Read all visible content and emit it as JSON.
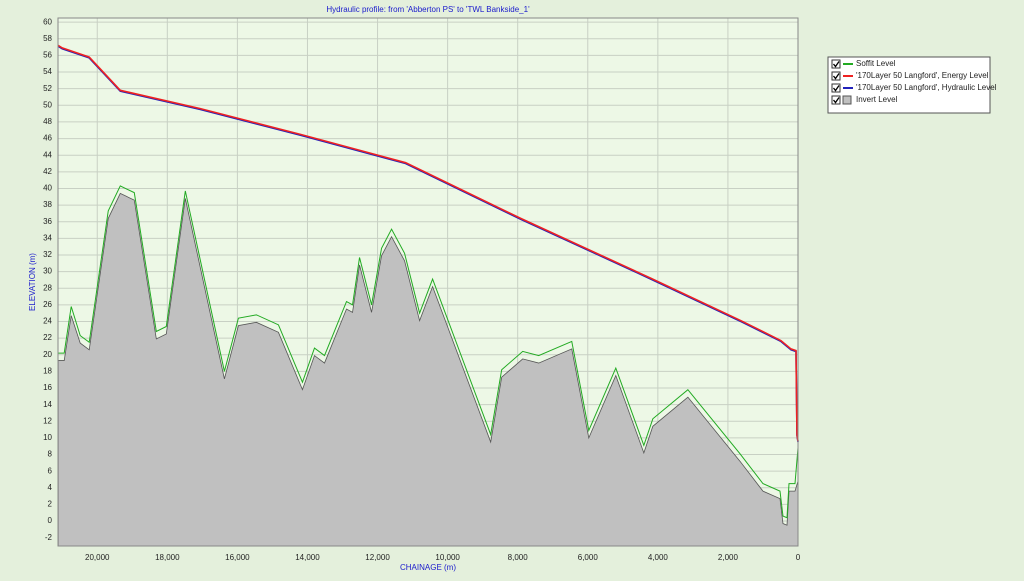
{
  "chart_data": {
    "type": "profile",
    "title": "Hydraulic profile: from 'Abberton PS' to 'TWL Bankside_1'",
    "x_label": "CHAINAGE (m)",
    "y_label": "ELEVATION (m)",
    "xlim": [
      21120,
      0
    ],
    "ylim": [
      -3,
      60.5
    ],
    "xticks": [
      {
        "value": 20000,
        "label": "20,000"
      },
      {
        "value": 18000,
        "label": "18,000"
      },
      {
        "value": 16000,
        "label": "16,000"
      },
      {
        "value": 14000,
        "label": "14,000"
      },
      {
        "value": 12000,
        "label": "12,000"
      },
      {
        "value": 10000,
        "label": "10,000"
      },
      {
        "value": 8000,
        "label": "8,000"
      },
      {
        "value": 6000,
        "label": "6,000"
      },
      {
        "value": 4000,
        "label": "4,000"
      },
      {
        "value": 2000,
        "label": "2,000"
      },
      0
    ],
    "yticks": [
      -2,
      0,
      2,
      4,
      6,
      8,
      10,
      12,
      14,
      16,
      18,
      20,
      22,
      24,
      26,
      28,
      30,
      32,
      34,
      36,
      38,
      40,
      42,
      44,
      46,
      48,
      50,
      52,
      54,
      56,
      58,
      60
    ],
    "grid": true,
    "series": [
      {
        "name": "Soffit Level",
        "color": "#22aa22",
        "area": false,
        "x": [
          21114,
          20943,
          20743,
          20486,
          20229,
          19686,
          19343,
          18943,
          18314,
          18029,
          17486,
          16371,
          15971,
          15457,
          14829,
          14143,
          13800,
          13514,
          12886,
          12714,
          12514,
          12171,
          11886,
          11600,
          11229,
          10800,
          10429,
          8771,
          8457,
          7857,
          7400,
          6457,
          5971,
          5200,
          4400,
          4143,
          3143,
          1657,
          1000,
          514,
          429,
          314,
          257,
          86,
          0
        ],
        "values": [
          20.2,
          20.2,
          25.8,
          22.3,
          21.5,
          37.3,
          40.3,
          39.5,
          22.8,
          23.4,
          39.7,
          18.0,
          24.4,
          24.8,
          23.6,
          16.7,
          20.8,
          19.9,
          26.4,
          26.0,
          31.7,
          26.0,
          32.8,
          35.1,
          32.2,
          25.0,
          29.1,
          10.4,
          18.2,
          20.4,
          19.9,
          21.6,
          10.9,
          18.4,
          9.1,
          12.3,
          15.8,
          8.1,
          4.5,
          3.6,
          0.6,
          0.4,
          4.5,
          4.5,
          8.8
        ]
      },
      {
        "name": "'170Layer 50 Langford', Energy Level",
        "color": "#ee2222",
        "area": false,
        "x": [
          21114,
          21000,
          20229,
          19343,
          17057,
          14200,
          11200,
          7914,
          4200,
          1629,
          486,
          200,
          57,
          29,
          0
        ],
        "values": [
          57.2,
          56.9,
          55.8,
          51.8,
          49.6,
          46.5,
          43.1,
          36.4,
          29.2,
          24.1,
          21.7,
          20.7,
          20.5,
          10.4,
          9.6
        ]
      },
      {
        "name": "'170Layer 50 Langford', Hydraulic Level",
        "color": "#2222bb",
        "area": false,
        "x": [
          21114,
          21000,
          20229,
          19343,
          17057,
          14200,
          11200,
          7914,
          4200,
          1629,
          486,
          200,
          57,
          29,
          0
        ],
        "values": [
          57.1,
          56.8,
          55.7,
          51.7,
          49.5,
          46.4,
          43.0,
          36.3,
          29.1,
          24.0,
          21.6,
          20.6,
          20.4,
          10.3,
          9.5
        ]
      },
      {
        "name": "Invert Level",
        "color": "#c0c0c0",
        "area": true,
        "x": [
          21114,
          20943,
          20743,
          20486,
          20229,
          19686,
          19343,
          18943,
          18314,
          18029,
          17486,
          16371,
          15971,
          15457,
          14829,
          14143,
          13800,
          13514,
          12886,
          12714,
          12514,
          12171,
          11886,
          11600,
          11229,
          10800,
          10429,
          8771,
          8457,
          7857,
          7400,
          6457,
          5971,
          5200,
          4400,
          4143,
          3143,
          1657,
          1000,
          514,
          429,
          314,
          257,
          86,
          0
        ],
        "values": [
          19.3,
          19.3,
          24.7,
          21.4,
          20.6,
          36.4,
          39.4,
          38.6,
          21.9,
          22.5,
          38.8,
          17.1,
          23.5,
          23.9,
          22.7,
          15.8,
          19.9,
          19.0,
          25.5,
          25.1,
          30.8,
          25.1,
          31.9,
          34.2,
          31.3,
          24.1,
          28.2,
          9.5,
          17.3,
          19.5,
          19.0,
          20.7,
          10.0,
          17.5,
          8.2,
          11.4,
          14.9,
          7.2,
          3.6,
          2.7,
          -0.3,
          -0.5,
          3.6,
          3.6,
          4.8
        ]
      }
    ],
    "draw_order": [
      3,
      0,
      2,
      1
    ]
  }
}
